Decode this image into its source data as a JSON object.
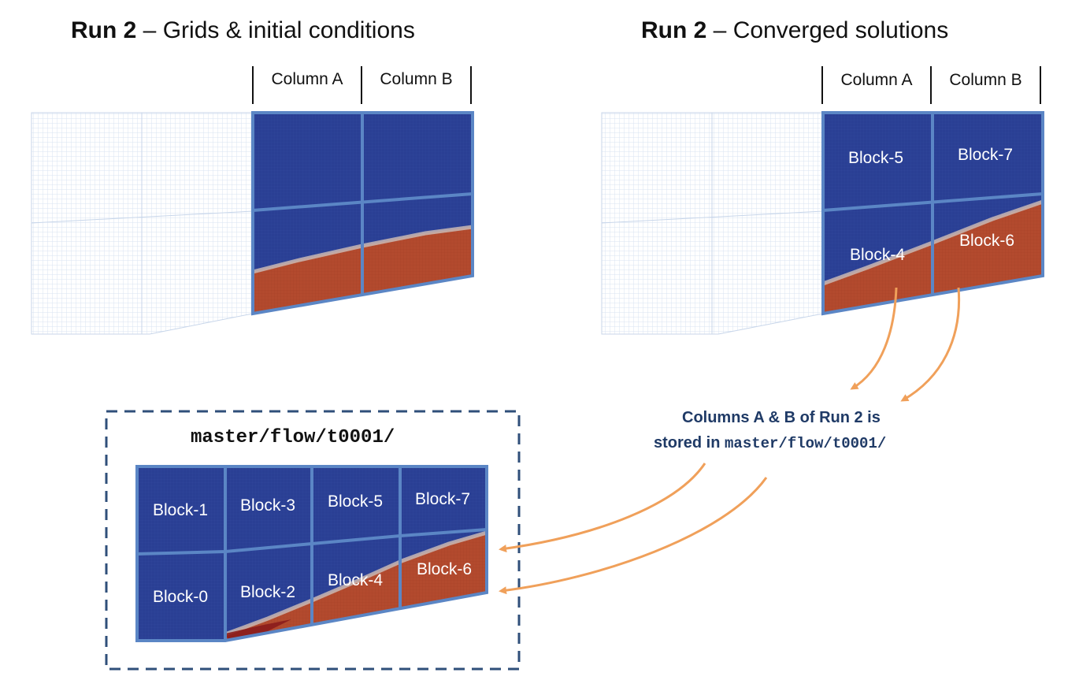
{
  "left_panel": {
    "title_bold": "Run 2",
    "title_rest": " – Grids & initial conditions",
    "column_a": "Column A",
    "column_b": "Column B"
  },
  "right_panel": {
    "title_bold": "Run 2",
    "title_rest": " – Converged solutions",
    "column_a": "Column A",
    "column_b": "Column B",
    "blocks": [
      "Block-5",
      "Block-7",
      "Block-4",
      "Block-6"
    ]
  },
  "storage_box": {
    "path": "master/flow/t0001/",
    "blocks": [
      "Block-1",
      "Block-3",
      "Block-5",
      "Block-7",
      "Block-0",
      "Block-2",
      "Block-4",
      "Block-6"
    ]
  },
  "note": {
    "line1": "Columns A & B of Run 2 is",
    "line2_prefix": "stored in ",
    "line2_path": "master/flow/t0001/"
  },
  "colors": {
    "block_blue": "#2a3f94",
    "flow_red": "#b34a2e",
    "border_blue": "#5b86c5",
    "arrow_orange": "#f0a05a",
    "dash_border": "#2f4f7a",
    "note_text": "#1f3a66"
  }
}
